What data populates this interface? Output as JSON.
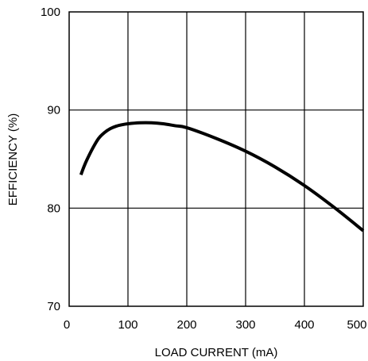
{
  "chart_data": {
    "type": "line",
    "title": "",
    "xlabel": "LOAD CURRENT (mA)",
    "ylabel": "EFFICIENCY (%)",
    "xlim": [
      0,
      500
    ],
    "ylim": [
      70,
      100
    ],
    "x_ticks": [
      0,
      100,
      200,
      300,
      400,
      500
    ],
    "y_ticks": [
      70,
      80,
      90,
      100
    ],
    "x_tick_labels": [
      "0",
      "100",
      "200",
      "300",
      "400",
      "500"
    ],
    "y_tick_labels": [
      "70",
      "80",
      "90",
      "100"
    ],
    "grid": true,
    "series": [
      {
        "name": "",
        "color": "#000000",
        "x": [
          20,
          25,
          30,
          40,
          50,
          60,
          70,
          80,
          90,
          100,
          120,
          140,
          160,
          180,
          200,
          250,
          300,
          350,
          400,
          450,
          500
        ],
        "y": [
          83.4,
          84.2,
          84.9,
          86.1,
          87.1,
          87.7,
          88.1,
          88.35,
          88.5,
          88.6,
          88.7,
          88.7,
          88.6,
          88.4,
          88.2,
          87.1,
          85.8,
          84.2,
          82.3,
          80.1,
          77.7
        ]
      }
    ]
  }
}
